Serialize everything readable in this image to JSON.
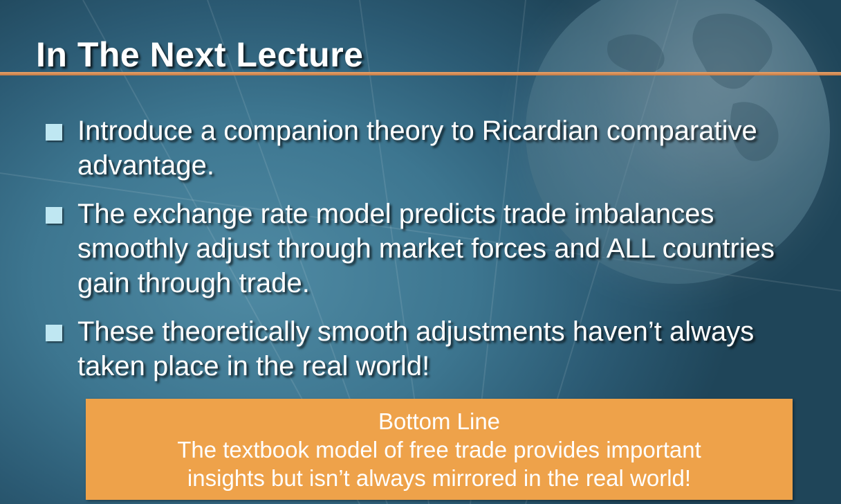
{
  "slide": {
    "title": "In The Next Lecture",
    "bullets": [
      {
        "text": "Introduce a companion theory to Ricardian comparative advantage."
      },
      {
        "text": "The exchange rate model predicts trade imbalances smoothly adjust through market forces and ALL countries gain through trade."
      },
      {
        "text": "These theoretically smooth adjustments haven’t always taken place in the real world!"
      }
    ],
    "bottom_box": {
      "heading": "Bottom Line",
      "line1": "The textbook model of free trade provides important",
      "line2": "insights but isn’t always mirrored in the real world!"
    }
  },
  "colors": {
    "background": "#3d7690",
    "title_rule": "#d08a52",
    "bullet_marker": "#bfe7f2",
    "bottom_box": "#eea24a",
    "text": "#ffffff"
  }
}
